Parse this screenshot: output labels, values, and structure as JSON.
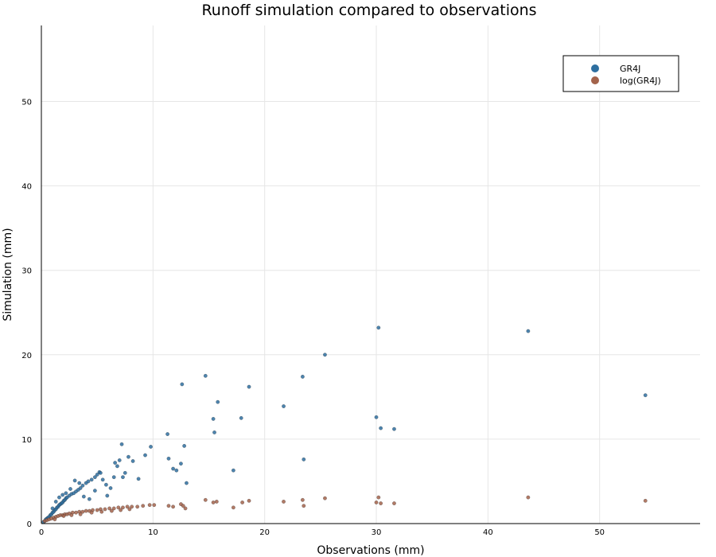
{
  "chart_data": {
    "type": "scatter",
    "title": "Runoff simulation compared to observations",
    "xlabel": "Observations (mm)",
    "ylabel": "Simulation (mm)",
    "xlim": [
      0,
      59
    ],
    "ylim": [
      0,
      59
    ],
    "xticks": [
      0,
      10,
      20,
      30,
      40,
      50
    ],
    "yticks": [
      0,
      10,
      20,
      30,
      40,
      50
    ],
    "grid": true,
    "legend_position": "top-right",
    "colors": {
      "GR4J": "#2e6fa0",
      "log(GR4J)": "#a3634b"
    },
    "series": [
      {
        "name": "GR4J",
        "x": [
          0.2,
          0.3,
          0.4,
          0.5,
          0.6,
          0.7,
          0.8,
          0.9,
          1.0,
          1.1,
          1.2,
          1.3,
          1.4,
          1.5,
          1.6,
          1.7,
          1.8,
          1.9,
          2.0,
          2.1,
          2.2,
          2.3,
          2.5,
          2.7,
          2.9,
          3.1,
          3.3,
          3.5,
          3.7,
          4.0,
          4.2,
          4.5,
          4.8,
          5.0,
          5.2,
          5.5,
          5.8,
          6.2,
          6.5,
          6.8,
          7.0,
          7.2,
          7.5,
          7.8,
          8.2,
          8.7,
          1.0,
          1.3,
          1.6,
          1.9,
          2.2,
          2.6,
          3.0,
          3.4,
          3.8,
          4.3,
          4.8,
          5.3,
          5.9,
          6.6,
          7.3,
          9.3,
          9.8,
          11.3,
          11.4,
          11.8,
          12.1,
          12.5,
          12.6,
          12.8,
          13.0,
          14.7,
          15.4,
          15.5,
          15.8,
          17.2,
          17.9,
          18.6,
          21.7,
          23.4,
          23.5,
          25.4,
          30.0,
          30.2,
          30.4,
          31.6,
          43.6,
          54.1
        ],
        "y": [
          0.2,
          0.3,
          0.5,
          0.6,
          0.7,
          0.8,
          1.0,
          1.1,
          1.3,
          1.4,
          1.6,
          1.7,
          1.9,
          2.0,
          2.2,
          2.3,
          2.4,
          2.5,
          2.7,
          2.8,
          3.0,
          3.1,
          3.3,
          3.5,
          3.6,
          3.8,
          4.0,
          4.2,
          4.5,
          4.8,
          5.0,
          5.2,
          5.5,
          5.8,
          6.1,
          5.2,
          4.6,
          4.2,
          5.5,
          6.8,
          7.5,
          9.4,
          6.0,
          7.9,
          7.4,
          5.3,
          1.8,
          2.6,
          3.1,
          3.4,
          3.6,
          4.1,
          5.1,
          4.8,
          3.2,
          2.9,
          3.9,
          6.0,
          3.3,
          7.2,
          5.5,
          8.1,
          9.1,
          10.6,
          7.7,
          6.5,
          6.3,
          7.1,
          16.5,
          9.2,
          4.8,
          17.5,
          12.4,
          10.8,
          14.4,
          6.3,
          12.5,
          16.2,
          13.9,
          17.4,
          7.6,
          20.0,
          12.6,
          23.2,
          11.3,
          11.2,
          22.8,
          15.2
        ]
      },
      {
        "name": "log(GR4J)",
        "x": [
          0.3,
          0.5,
          0.7,
          0.9,
          1.1,
          1.3,
          1.5,
          1.7,
          1.9,
          2.1,
          2.3,
          2.5,
          2.8,
          3.1,
          3.4,
          3.7,
          4.0,
          4.3,
          4.6,
          5.0,
          5.3,
          5.7,
          6.1,
          6.5,
          6.9,
          7.3,
          7.7,
          8.1,
          8.6,
          9.1,
          9.7,
          10.1,
          11.4,
          11.8,
          12.5,
          12.7,
          12.9,
          14.7,
          15.4,
          15.7,
          17.2,
          18.0,
          18.6,
          21.7,
          23.4,
          23.5,
          25.4,
          30.0,
          30.2,
          30.4,
          31.6,
          43.6,
          54.1,
          1.2,
          2.0,
          2.7,
          3.5,
          4.5,
          5.4,
          6.3,
          7.1,
          7.9
        ],
        "y": [
          0.3,
          0.4,
          0.5,
          0.6,
          0.7,
          0.8,
          0.9,
          1.0,
          1.0,
          1.1,
          1.1,
          1.2,
          1.3,
          1.3,
          1.4,
          1.4,
          1.5,
          1.5,
          1.6,
          1.6,
          1.7,
          1.7,
          1.8,
          1.8,
          1.9,
          1.9,
          2.0,
          2.0,
          2.0,
          2.1,
          2.2,
          2.2,
          2.1,
          2.0,
          2.3,
          2.1,
          1.8,
          2.8,
          2.5,
          2.6,
          1.9,
          2.5,
          2.7,
          2.6,
          2.8,
          2.1,
          3.0,
          2.5,
          3.1,
          2.4,
          2.4,
          3.1,
          2.7,
          0.5,
          0.9,
          1.0,
          1.1,
          1.3,
          1.4,
          1.5,
          1.6,
          1.7
        ]
      }
    ]
  }
}
